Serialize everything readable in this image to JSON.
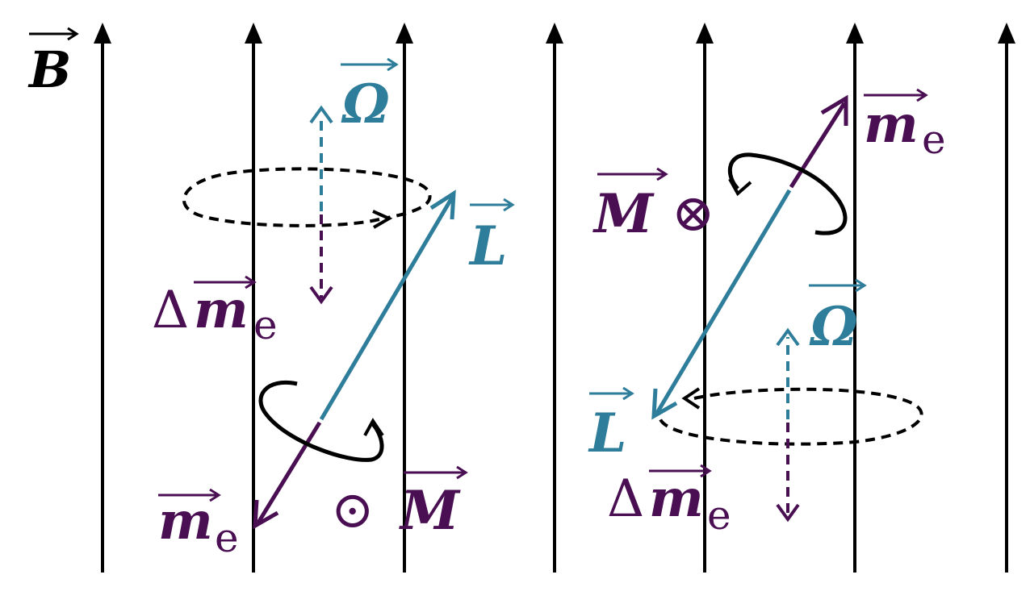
{
  "colors": {
    "field": "#000000",
    "teal": "#2e7d9a",
    "purple": "#4a0f52",
    "loop": "#000000"
  },
  "field": {
    "label": "B",
    "line_count": 7
  },
  "left_panel": {
    "omega": {
      "label": "Ω"
    },
    "L": {
      "label": "L"
    },
    "me": {
      "label": "m",
      "sub": "e"
    },
    "delta_me": {
      "prefix": "Δ",
      "label": "m",
      "sub": "e"
    },
    "M": {
      "symbol": "⊙",
      "label": "M"
    }
  },
  "right_panel": {
    "omega": {
      "label": "Ω"
    },
    "L": {
      "label": "L"
    },
    "me": {
      "label": "m",
      "sub": "e"
    },
    "delta_me": {
      "prefix": "Δ",
      "label": "m",
      "sub": "e"
    },
    "M": {
      "symbol": "⊗",
      "label": "M"
    }
  }
}
